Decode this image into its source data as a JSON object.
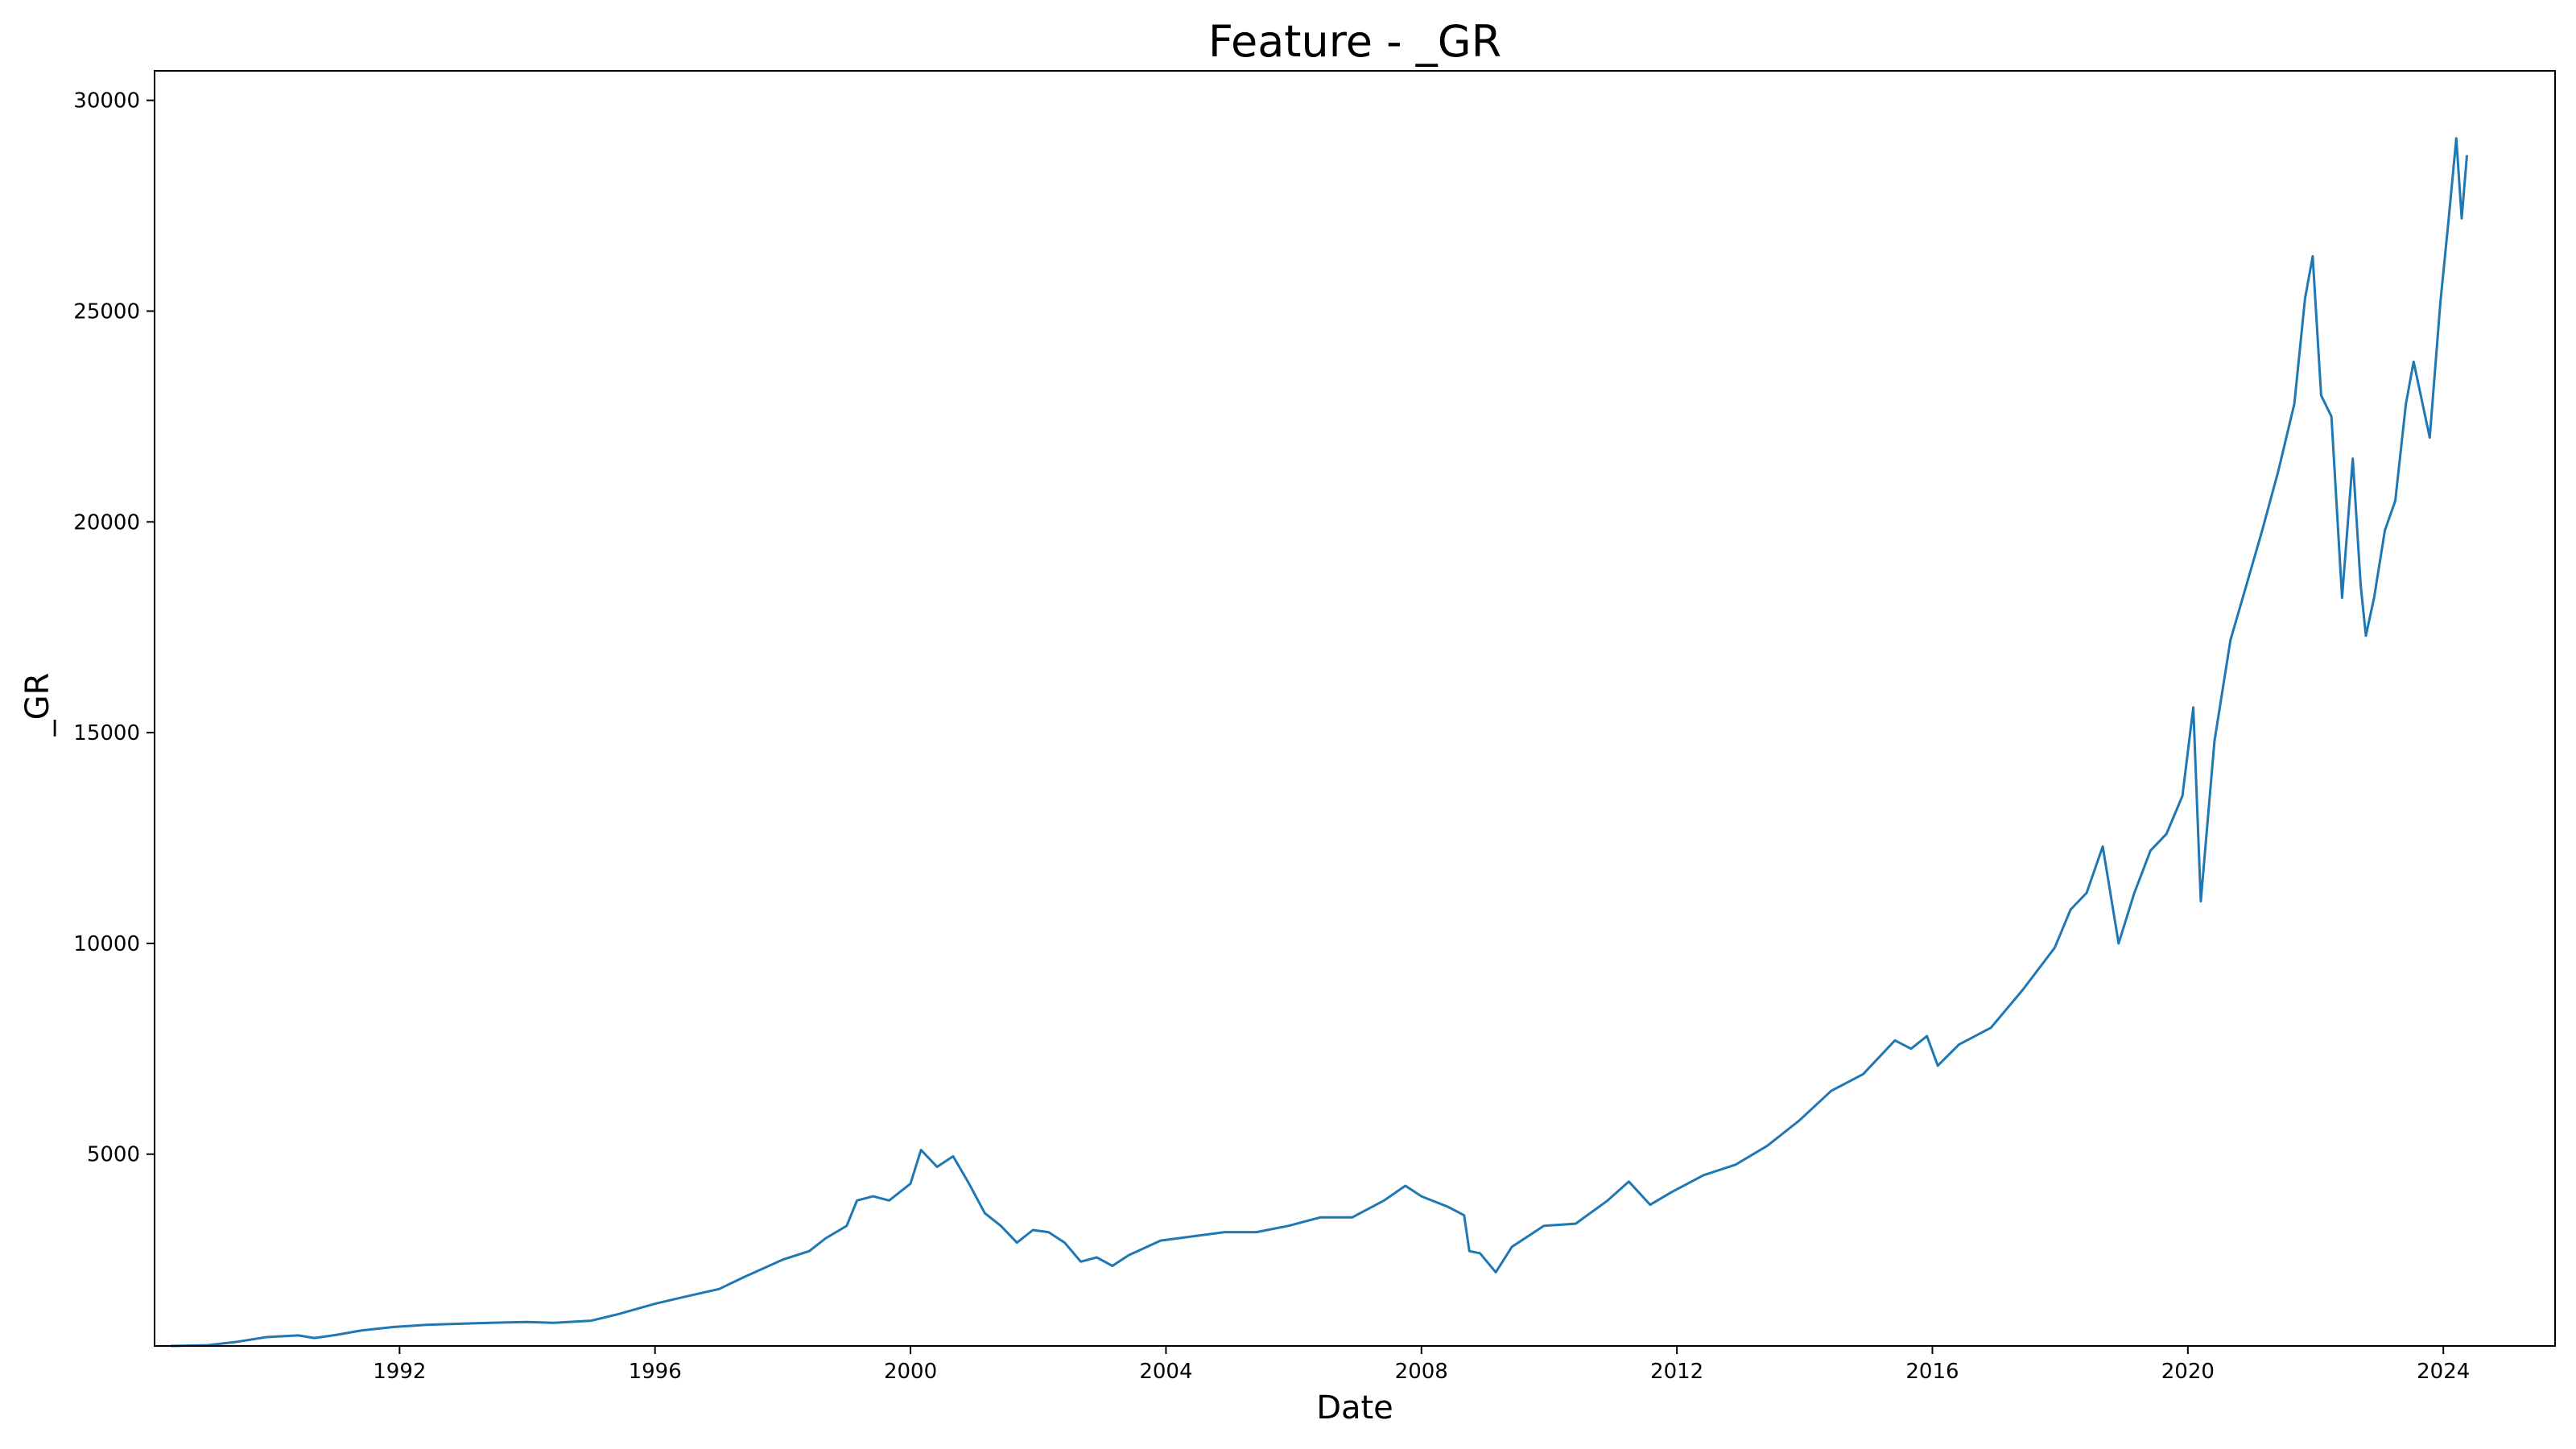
{
  "chart_data": {
    "type": "line",
    "title": "Feature - _GR",
    "xlabel": "Date",
    "ylabel": "_GR",
    "xlim": [
      "1988-03-01",
      "2025-10-01"
    ],
    "ylim": [
      450,
      30700
    ],
    "x_ticks": [
      "1992",
      "1996",
      "2000",
      "2004",
      "2008",
      "2012",
      "2016",
      "2020",
      "2024"
    ],
    "y_ticks": [
      5000,
      10000,
      15000,
      20000,
      25000,
      30000
    ],
    "y_tick_labels": [
      "5000",
      "10000",
      "15000",
      "20000",
      "25000",
      "30000"
    ],
    "grid": false,
    "legend": false,
    "series": [
      {
        "color": "#1f77b4",
        "points": [
          [
            "1988-06-01",
            450
          ],
          [
            "1989-01-01",
            470
          ],
          [
            "1989-06-01",
            540
          ],
          [
            "1989-12-01",
            660
          ],
          [
            "1990-06-01",
            700
          ],
          [
            "1990-09-01",
            640
          ],
          [
            "1991-01-01",
            710
          ],
          [
            "1991-06-01",
            820
          ],
          [
            "1991-12-01",
            900
          ],
          [
            "1992-06-01",
            950
          ],
          [
            "1993-01-01",
            980
          ],
          [
            "1993-06-01",
            1000
          ],
          [
            "1994-01-01",
            1020
          ],
          [
            "1994-06-01",
            1000
          ],
          [
            "1995-01-01",
            1050
          ],
          [
            "1995-06-01",
            1200
          ],
          [
            "1996-01-01",
            1450
          ],
          [
            "1996-06-01",
            1600
          ],
          [
            "1997-01-01",
            1800
          ],
          [
            "1997-06-01",
            2100
          ],
          [
            "1998-01-01",
            2500
          ],
          [
            "1998-06-01",
            2700
          ],
          [
            "1998-09-01",
            3000
          ],
          [
            "1999-01-01",
            3300
          ],
          [
            "1999-03-01",
            3900
          ],
          [
            "1999-06-01",
            4000
          ],
          [
            "1999-09-01",
            3900
          ],
          [
            "2000-01-01",
            4300
          ],
          [
            "2000-03-01",
            5100
          ],
          [
            "2000-06-01",
            4700
          ],
          [
            "2000-09-01",
            4950
          ],
          [
            "2000-12-01",
            4300
          ],
          [
            "2001-03-01",
            3600
          ],
          [
            "2001-06-01",
            3300
          ],
          [
            "2001-09-01",
            2900
          ],
          [
            "2001-12-01",
            3200
          ],
          [
            "2002-03-01",
            3150
          ],
          [
            "2002-06-01",
            2900
          ],
          [
            "2002-09-01",
            2450
          ],
          [
            "2002-12-01",
            2550
          ],
          [
            "2003-03-01",
            2350
          ],
          [
            "2003-06-01",
            2600
          ],
          [
            "2003-12-01",
            2950
          ],
          [
            "2004-06-01",
            3050
          ],
          [
            "2004-12-01",
            3150
          ],
          [
            "2005-06-01",
            3150
          ],
          [
            "2005-12-01",
            3300
          ],
          [
            "2006-06-01",
            3500
          ],
          [
            "2006-12-01",
            3500
          ],
          [
            "2007-06-01",
            3900
          ],
          [
            "2007-10-01",
            4250
          ],
          [
            "2008-01-01",
            4000
          ],
          [
            "2008-06-01",
            3750
          ],
          [
            "2008-09-01",
            3550
          ],
          [
            "2008-10-01",
            2700
          ],
          [
            "2008-12-01",
            2650
          ],
          [
            "2009-03-01",
            2200
          ],
          [
            "2009-06-01",
            2800
          ],
          [
            "2009-12-01",
            3300
          ],
          [
            "2010-06-01",
            3350
          ],
          [
            "2010-12-01",
            3900
          ],
          [
            "2011-04-01",
            4350
          ],
          [
            "2011-08-01",
            3800
          ],
          [
            "2011-12-01",
            4100
          ],
          [
            "2012-06-01",
            4500
          ],
          [
            "2012-12-01",
            4750
          ],
          [
            "2013-06-01",
            5200
          ],
          [
            "2013-12-01",
            5800
          ],
          [
            "2014-06-01",
            6500
          ],
          [
            "2014-12-01",
            6900
          ],
          [
            "2015-06-01",
            7700
          ],
          [
            "2015-09-01",
            7500
          ],
          [
            "2015-12-01",
            7800
          ],
          [
            "2016-02-01",
            7100
          ],
          [
            "2016-06-01",
            7600
          ],
          [
            "2016-12-01",
            8000
          ],
          [
            "2017-06-01",
            8900
          ],
          [
            "2017-12-01",
            9900
          ],
          [
            "2018-03-01",
            10800
          ],
          [
            "2018-06-01",
            11200
          ],
          [
            "2018-09-01",
            12300
          ],
          [
            "2018-12-01",
            10000
          ],
          [
            "2019-03-01",
            11200
          ],
          [
            "2019-06-01",
            12200
          ],
          [
            "2019-09-01",
            12600
          ],
          [
            "2019-12-01",
            13500
          ],
          [
            "2020-02-01",
            15600
          ],
          [
            "2020-03-15",
            11000
          ],
          [
            "2020-06-01",
            14800
          ],
          [
            "2020-09-01",
            17200
          ],
          [
            "2020-12-01",
            18500
          ],
          [
            "2021-03-01",
            19800
          ],
          [
            "2021-06-01",
            21200
          ],
          [
            "2021-09-01",
            22800
          ],
          [
            "2021-11-01",
            25300
          ],
          [
            "2021-12-15",
            26300
          ],
          [
            "2022-02-01",
            23000
          ],
          [
            "2022-04-01",
            22500
          ],
          [
            "2022-06-01",
            18200
          ],
          [
            "2022-08-01",
            21500
          ],
          [
            "2022-09-15",
            18500
          ],
          [
            "2022-10-15",
            17300
          ],
          [
            "2022-12-01",
            18200
          ],
          [
            "2023-02-01",
            19800
          ],
          [
            "2023-04-01",
            20500
          ],
          [
            "2023-06-01",
            22800
          ],
          [
            "2023-07-15",
            23800
          ],
          [
            "2023-10-15",
            22000
          ],
          [
            "2023-12-15",
            25200
          ],
          [
            "2024-02-01",
            27200
          ],
          [
            "2024-03-15",
            29100
          ],
          [
            "2024-04-15",
            27200
          ],
          [
            "2024-05-15",
            28700
          ]
        ]
      }
    ]
  }
}
